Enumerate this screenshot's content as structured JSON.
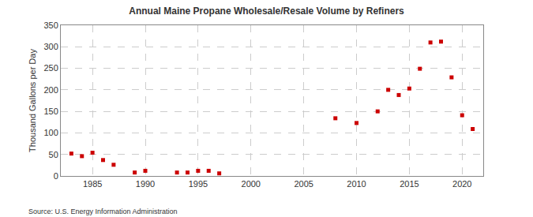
{
  "chart_data": {
    "type": "scatter",
    "title": "Annual Maine Propane Wholesale/Resale Volume by Refiners",
    "y_label": "Thousand Gallons per Day",
    "source": "Source: U.S. Energy Information Administration",
    "x": [
      1983,
      1984,
      1985,
      1986,
      1987,
      1989,
      1990,
      1993,
      1994,
      1995,
      1996,
      1997,
      2008,
      2010,
      2012,
      2013,
      2014,
      2015,
      2016,
      2017,
      2018,
      2019,
      2020,
      2021
    ],
    "values": [
      52,
      46,
      54,
      37,
      26,
      8,
      12,
      8,
      8,
      12,
      12,
      6,
      134,
      123,
      150,
      200,
      188,
      203,
      249,
      310,
      312,
      229,
      141,
      109
    ],
    "color": "#cc0000",
    "marker": "square",
    "xlim": [
      1982,
      2022
    ],
    "xticks": [
      1985,
      1990,
      1995,
      2000,
      2005,
      2010,
      2015,
      2020
    ],
    "ylim": [
      0,
      350
    ],
    "yticks": [
      0,
      50,
      100,
      150,
      200,
      250,
      300,
      350
    ],
    "grid": true
  }
}
